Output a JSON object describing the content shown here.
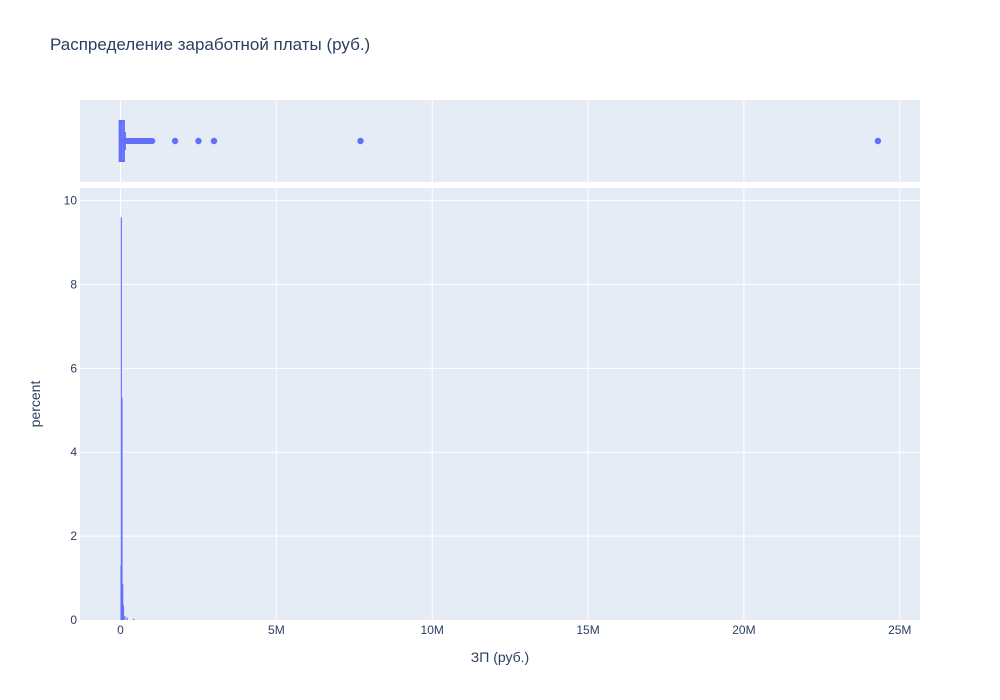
{
  "chart_data": {
    "type": "histogram",
    "title": "Распределение заработной платы (руб.)",
    "xlabel": "ЗП (руб.)",
    "ylabel": "percent",
    "xlim": [
      -1300000,
      25650000
    ],
    "ylim": [
      0,
      10.3
    ],
    "grid": true,
    "legend": "none",
    "colors": {
      "series": "#636efa",
      "plot_bg": "#e5ecf6",
      "grid": "#ffffff",
      "text": "#2a3f5f"
    },
    "x_ticks": [
      {
        "value": 0,
        "label": "0"
      },
      {
        "value": 5000000,
        "label": "5M"
      },
      {
        "value": 10000000,
        "label": "10M"
      },
      {
        "value": 15000000,
        "label": "15M"
      },
      {
        "value": 20000000,
        "label": "20M"
      },
      {
        "value": 25000000,
        "label": "25M"
      }
    ],
    "y_ticks": [
      {
        "value": 0,
        "label": "0"
      },
      {
        "value": 2,
        "label": "2"
      },
      {
        "value": 4,
        "label": "4"
      },
      {
        "value": 6,
        "label": "6"
      },
      {
        "value": 8,
        "label": "8"
      },
      {
        "value": 10,
        "label": "10"
      }
    ],
    "histogram": {
      "bins": [
        {
          "x": 15000,
          "percent": 1.3
        },
        {
          "x": 25000,
          "percent": 9.6
        },
        {
          "x": 45000,
          "percent": 5.3
        },
        {
          "x": 70000,
          "percent": 0.85
        },
        {
          "x": 95000,
          "percent": 0.35
        },
        {
          "x": 140000,
          "percent": 0.1
        },
        {
          "x": 210000,
          "percent": 0.06
        },
        {
          "x": 420000,
          "percent": 0.03
        }
      ]
    },
    "box_marginal": {
      "q1": 20000,
      "median": 35000,
      "q3": 60000,
      "whisker_low": 0,
      "whisker_high": 140000,
      "dense_outliers_range": [
        140000,
        1030000
      ],
      "outliers": [
        1750000,
        2500000,
        3000000,
        7700000,
        24300000
      ]
    }
  }
}
